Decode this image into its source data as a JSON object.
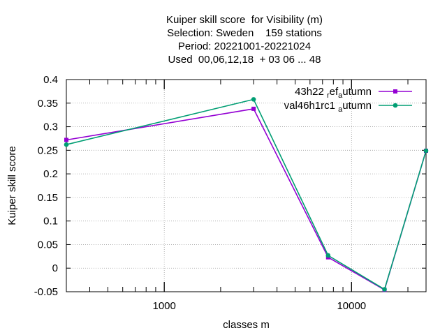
{
  "chart_data": {
    "type": "line",
    "title_lines": [
      "Kuiper skill score  for Visibility (m)",
      "Selection: Sweden    159 stations",
      "Period: 20221001-20221024",
      "Used  00,06,12,18  + 03 06 ... 48"
    ],
    "xlabel": "classes m",
    "ylabel": "Kuiper skill score",
    "x_scale": "log",
    "xlim": [
      300,
      25000
    ],
    "ylim": [
      -0.05,
      0.4
    ],
    "x_ticks": [
      1000,
      10000
    ],
    "x_tick_labels": [
      "1000",
      "10000"
    ],
    "y_ticks": [
      -0.05,
      0,
      0.05,
      0.1,
      0.15,
      0.2,
      0.25,
      0.3,
      0.35,
      0.4
    ],
    "y_tick_labels": [
      "-0.05",
      "0",
      "0.05",
      "0.1",
      "0.15",
      "0.2",
      "0.25",
      "0.3",
      "0.35",
      "0.4"
    ],
    "grid": true,
    "legend_position": "top-right",
    "x": [
      300,
      3000,
      7500,
      15000,
      25000
    ],
    "series": [
      {
        "name_main": "43h22",
        "name_sub": "r",
        "name_mid": "ef",
        "name_sub2": "a",
        "name_tail": "utumn",
        "color": "#9400d3",
        "values": [
          0.272,
          0.338,
          0.023,
          -0.046,
          0.249
        ]
      },
      {
        "name_main": "val46h1rc1",
        "name_sub": "",
        "name_mid": "",
        "name_sub2": "a",
        "name_tail": "utumn",
        "color": "#009e73",
        "values": [
          0.262,
          0.358,
          0.027,
          -0.045,
          0.249
        ]
      }
    ]
  }
}
